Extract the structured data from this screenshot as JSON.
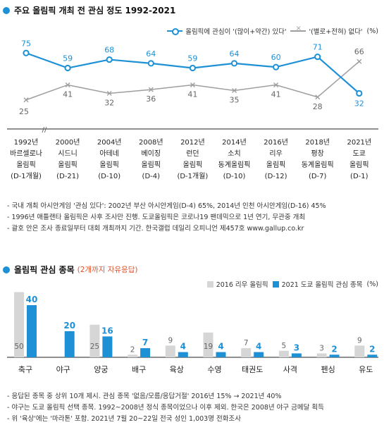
{
  "colors": {
    "accent": "#1e90d6",
    "gray_line": "#9e9e9e",
    "gray_bar": "#d6d6d6",
    "blue_bar": "#1e90d6"
  },
  "section1": {
    "title": "주요 올림픽 개최 전 관심 정도 1992-2021",
    "legend": {
      "interest": "올림픽에 관심이 '(많이+약간) 있다'",
      "nointerest": "'(별로+전혀) 없다'",
      "unit": "(%)"
    },
    "notes": [
      "- 국내 개최 아시안게임 '관심 있다': 2002년 부산 아시안게임(D-4) 65%, 2014년 인천 아시안게임(D-16) 45%",
      "- 1996년 애틀랜타 올림픽은 사후 조사만 진행. 도쿄올림픽은 코로나19 팬데믹으로 1년 연기, 무관중 개최",
      "- 괄호 안은 조사 종료일부터 대회 개최까지 기간. 한국갤럽 데일리 오피니언 제457호 www.gallup.co.kr"
    ]
  },
  "section2": {
    "title": "올림픽 관심 종목",
    "subtitle": "(2개까지 자유응답)",
    "legend": {
      "s2016": "2016 리우 올림픽",
      "s2021": "2021 도쿄 올림픽 관심 종목",
      "unit": "(%)"
    },
    "notes": [
      "- 응답된 종목 중 상위 10개 제시. 관심 종목 '없음/모름/응답거절' 2016년 15% → 2021년 40%",
      "- 야구는 도쿄 올림픽 선택 종목. 1992~2008년 정식 종목이었으나 이후 제외. 한국은 2008년 야구 금메달 획득",
      "- 위 '육상'에는 '마라톤' 포함. 2021년 7월 20~22일 전국 성인 1,003명 전화조사"
    ]
  },
  "chart_data": [
    {
      "type": "line",
      "title": "주요 올림픽 개최 전 관심 정도 1992-2021",
      "x": [
        "1992년",
        "2000년",
        "2004년",
        "2008년",
        "2012년",
        "2014년",
        "2016년",
        "2018년",
        "2021년"
      ],
      "x_labels": [
        [
          "1992년",
          "바르셀로나",
          "올림픽",
          "(D-1개월)"
        ],
        [
          "2000년",
          "시드니",
          "올림픽",
          "(D-21)"
        ],
        [
          "2004년",
          "아테네",
          "올림픽",
          "(D-10)"
        ],
        [
          "2008년",
          "베이징",
          "올림픽",
          "(D-4)"
        ],
        [
          "2012년",
          "런던",
          "올림픽",
          "(D-1개월)"
        ],
        [
          "2014년",
          "소치",
          "동계올림픽",
          "(D-10)"
        ],
        [
          "2016년",
          "리우",
          "올림픽",
          "(D-12)"
        ],
        [
          "2018년",
          "평창",
          "동계올림픽",
          "(D-7)"
        ],
        [
          "2021년",
          "도쿄",
          "올림픽",
          "(D-1)"
        ]
      ],
      "axis_break": "//",
      "series": [
        {
          "name": "올림픽에 관심이 '(많이+약간) 있다'",
          "values": [
            75,
            59,
            68,
            64,
            59,
            64,
            60,
            71,
            32
          ]
        },
        {
          "name": "'(별로+전혀) 없다'",
          "values": [
            25,
            41,
            32,
            36,
            41,
            35,
            41,
            28,
            66
          ]
        }
      ],
      "ylim": [
        0,
        100
      ],
      "grid": false,
      "legend_position": "top-right"
    },
    {
      "type": "bar",
      "title": "올림픽 관심 종목",
      "subtitle": "(2개까지 자유응답)",
      "categories": [
        "축구",
        "야구",
        "양궁",
        "배구",
        "육상",
        "수영",
        "태권도",
        "사격",
        "펜싱",
        "유도"
      ],
      "series": [
        {
          "name": "2016 리우 올림픽",
          "values": [
            50,
            null,
            25,
            2,
            9,
            19,
            7,
            5,
            3,
            9
          ]
        },
        {
          "name": "2021 도쿄 올림픽 관심 종목",
          "values": [
            40,
            20,
            16,
            7,
            4,
            4,
            4,
            3,
            2,
            2
          ]
        }
      ],
      "ylim": [
        0,
        55
      ],
      "grid": false,
      "legend_position": "top-right"
    }
  ]
}
